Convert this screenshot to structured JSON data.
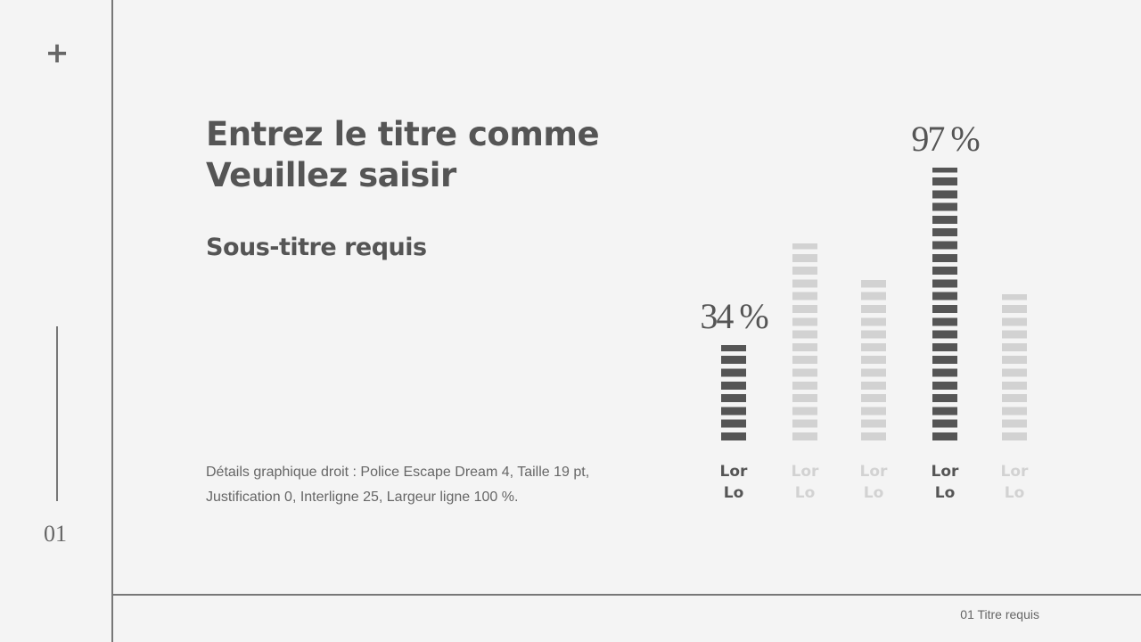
{
  "slide": {
    "title_lines": [
      "Entrez le titre comme",
      "Veuillez saisir"
    ],
    "subtitle": "Sous-titre requis",
    "description": "Détails graphique droit : Police Escape Dream 4, Taille 19 pt, Justification 0, Interligne 25, Largeur ligne 100 %.",
    "page_number": "01",
    "footer": "01 Titre requis",
    "plus": "+"
  },
  "chart_data": {
    "type": "bar",
    "categories": [
      "Lor Lo",
      "Lor Lo",
      "Lor Lo",
      "Lor Lo",
      "Lor Lo"
    ],
    "values": [
      34,
      70,
      57,
      97,
      52
    ],
    "value_labels": [
      "34 %",
      null,
      null,
      "97 %",
      null
    ],
    "colors": [
      "#555555",
      "#d2d2d2",
      "#d2d2d2",
      "#555555",
      "#d2d2d2"
    ],
    "ylim": [
      0,
      100
    ]
  }
}
